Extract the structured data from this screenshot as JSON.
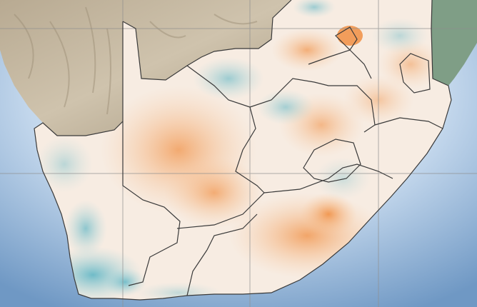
{
  "map": {
    "colors": {
      "ocean_deep": "#6f98c4",
      "ocean_light": "#d9e6f2",
      "land_relief": "#c9bca5",
      "land_relief_dark": "#a8987e",
      "land_green": "#7f9e86",
      "anomaly_warm_strong": "#f08a3a",
      "anomaly_warm": "#f8c9a0",
      "anomaly_neutral": "#f6f4f1",
      "anomaly_cool": "#a9d6dc",
      "anomaly_cool_strong": "#4fb0c2",
      "border": "#3a3a3a",
      "graticule": "#8e8e8e"
    },
    "legend": "",
    "title": ""
  }
}
